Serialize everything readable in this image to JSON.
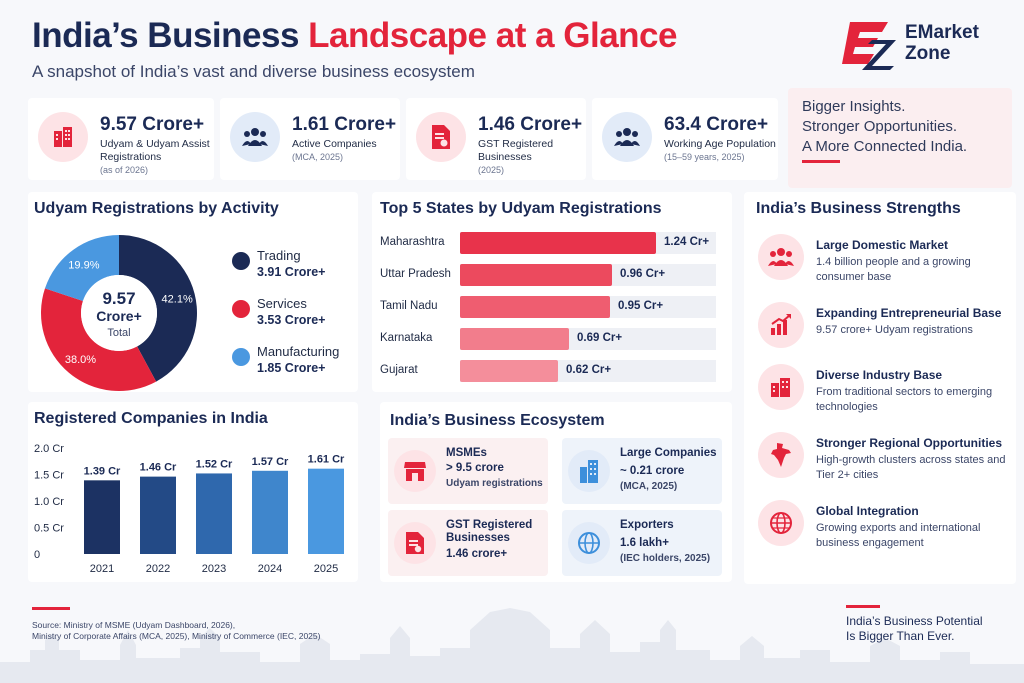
{
  "header": {
    "title_part1": "India’s Business",
    "title_part2": "Landscape at a Glance",
    "subtitle": "A snapshot of India’s vast and diverse business ecosystem"
  },
  "logo": {
    "line1": "EMarket",
    "line2": "Zone"
  },
  "stats": [
    {
      "value": "9.57 Crore+",
      "label_line1": "Udyam & Udyam Assist",
      "label_line2": "Registrations",
      "note": "(as of 2026)",
      "icon": "building-icon"
    },
    {
      "value": "1.61 Crore+",
      "label_line1": "Active Companies",
      "label_line2": "",
      "note": "(MCA, 2025)",
      "icon": "people-icon"
    },
    {
      "value": "1.46 Crore+",
      "label_line1": "GST Registered",
      "label_line2": "Businesses",
      "note": "(2025)",
      "icon": "document-icon"
    },
    {
      "value": "63.4 Crore+",
      "label_line1": "Working Age Population",
      "label_line2": "",
      "note": "(15–59 years, 2025)",
      "icon": "people-icon"
    }
  ],
  "tagline": {
    "line1": "Bigger Insights.",
    "line2": "Stronger Opportunities.",
    "line3": "A More Connected India."
  },
  "colors": {
    "navy": "#1b2a55",
    "red": "#e3243b",
    "blue": "#3d8fdb",
    "pink_bg": "#fde3e6"
  },
  "chart_data": [
    {
      "type": "pie",
      "title": "Udyam Registrations by Activity",
      "center_value": "9.57",
      "center_unit": "Crore+",
      "center_label": "Total",
      "slices": [
        {
          "name": "Trading",
          "value_text": "3.91 Crore+",
          "percent": 42.1,
          "percent_label": "42.1%",
          "color": "#1b2a55"
        },
        {
          "name": "Services",
          "value_text": "3.53 Crore+",
          "percent": 38.0,
          "percent_label": "38.0%",
          "color": "#e3243b"
        },
        {
          "name": "Manufacturing",
          "value_text": "1.85 Crore+",
          "percent": 19.9,
          "percent_label": "19.9%",
          "color": "#4a98e0"
        }
      ]
    },
    {
      "type": "bar",
      "orientation": "horizontal",
      "title": "Top 5 States by Udyam Registrations",
      "categories": [
        "Maharashtra",
        "Uttar Pradesh",
        "Tamil Nadu",
        "Karnataka",
        "Gujarat"
      ],
      "values": [
        1.24,
        0.96,
        0.95,
        0.69,
        0.62
      ],
      "value_labels": [
        "1.24 Cr+",
        "0.96 Cr+",
        "0.95 Cr+",
        "0.69 Cr+",
        "0.62 Cr+"
      ],
      "xlim": [
        0,
        1.24
      ]
    },
    {
      "type": "bar",
      "title": "Registered Companies in India",
      "categories": [
        "2021",
        "2022",
        "2023",
        "2024",
        "2025"
      ],
      "values": [
        1.39,
        1.46,
        1.52,
        1.57,
        1.61
      ],
      "value_labels": [
        "1.39 Cr",
        "1.46 Cr",
        "1.52 Cr",
        "1.57 Cr",
        "1.61 Cr"
      ],
      "yticks": [
        "2.0 Cr",
        "1.5 Cr",
        "1.0 Cr",
        "0.5 Cr",
        "0"
      ],
      "ylim": [
        0,
        2.0
      ],
      "colors": [
        "#1c3263",
        "#234a86",
        "#2f68ad",
        "#3f86cc",
        "#4a98e0"
      ]
    }
  ],
  "strengths": {
    "title": "India’s Business Strengths",
    "items": [
      {
        "title": "Large Domestic Market",
        "desc": "1.4 billion people and a growing consumer base",
        "icon": "people-icon"
      },
      {
        "title": "Expanding Entrepreneurial Base",
        "desc": "9.57 crore+ Udyam registrations",
        "icon": "growth-chart-icon"
      },
      {
        "title": "Diverse Industry Base",
        "desc": "From traditional sectors to emerging technologies",
        "icon": "buildings-icon"
      },
      {
        "title": "Stronger Regional Opportunities",
        "desc": "High-growth clusters across states and Tier 2+ cities",
        "icon": "india-map-icon"
      },
      {
        "title": "Global Integration",
        "desc": "Growing exports and international business engagement",
        "icon": "globe-icon"
      }
    ]
  },
  "ecosystem": {
    "title": "India’s Business Ecosystem",
    "cards": [
      {
        "title": "MSMEs",
        "value": "> 9.5 crore",
        "sub": "Udyam registrations",
        "icon": "shop-icon"
      },
      {
        "title": "Large Companies",
        "value": "~ 0.21 crore",
        "sub": "(MCA, 2025)",
        "icon": "skyscraper-icon"
      },
      {
        "title": "GST Registered Businesses",
        "value": "1.46 crore+",
        "sub": "",
        "icon": "document-icon"
      },
      {
        "title": "Exporters",
        "value": "1.6 lakh+",
        "sub": "(IEC holders, 2025)",
        "icon": "globe-icon"
      }
    ]
  },
  "footer": {
    "source_line1": "Source: Ministry of MSME (Udyam Dashboard, 2026),",
    "source_line2": "Ministry of Corporate Affairs (MCA, 2025), Ministry of Commerce (IEC, 2025)",
    "potential_line1": "India’s Business Potential",
    "potential_line2": "Is Bigger Than Ever."
  }
}
